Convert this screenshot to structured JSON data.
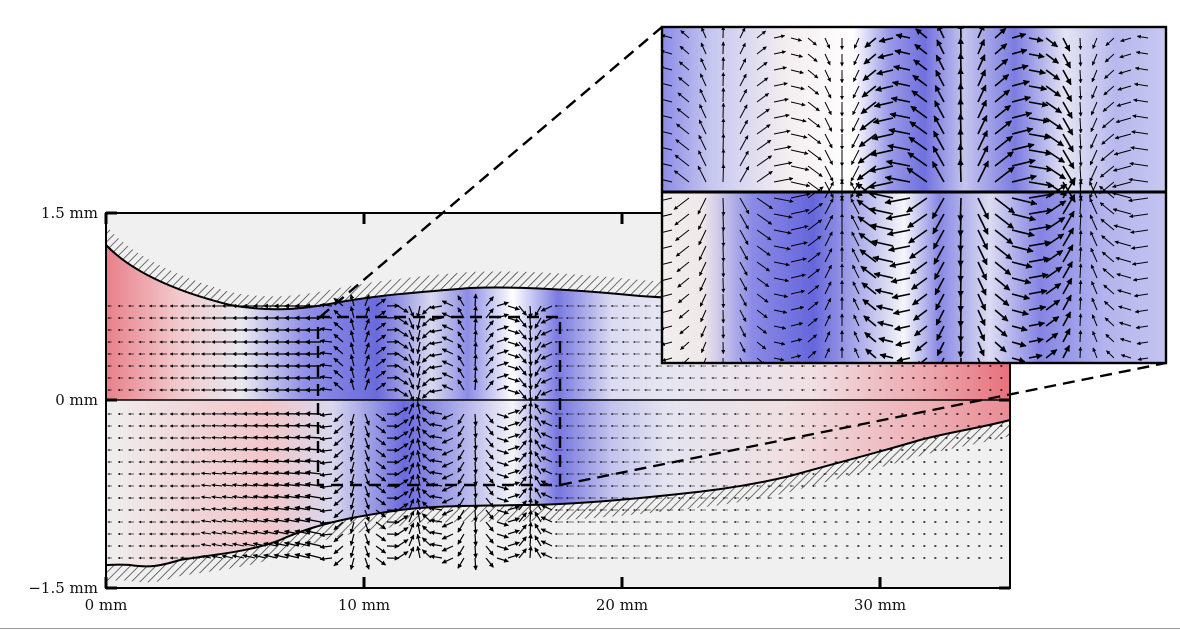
{
  "figure": {
    "axes": {
      "x_ticks": [
        {
          "value": 0,
          "label": "0 mm"
        },
        {
          "value": 10,
          "label": "10 mm"
        },
        {
          "value": 20,
          "label": "20 mm"
        },
        {
          "value": 30,
          "label": "30 mm"
        }
      ],
      "y_ticks": [
        {
          "value": 1.5,
          "label": "1.5 mm"
        },
        {
          "value": 0,
          "label": "0 mm"
        },
        {
          "value": -1.5,
          "label": "−1.5 mm"
        }
      ],
      "x_range_mm": [
        0,
        35
      ],
      "y_range_mm": [
        -1.5,
        1.5
      ]
    },
    "zoom_region_mm": {
      "x": [
        8.2,
        17.6
      ],
      "y": [
        -0.65,
        0.65
      ]
    },
    "colors": {
      "background": "#f0f0f0",
      "red": "#e8808a",
      "blue": "#7070e0",
      "wall_hatch": "#333333",
      "arrow": "#000000"
    }
  }
}
